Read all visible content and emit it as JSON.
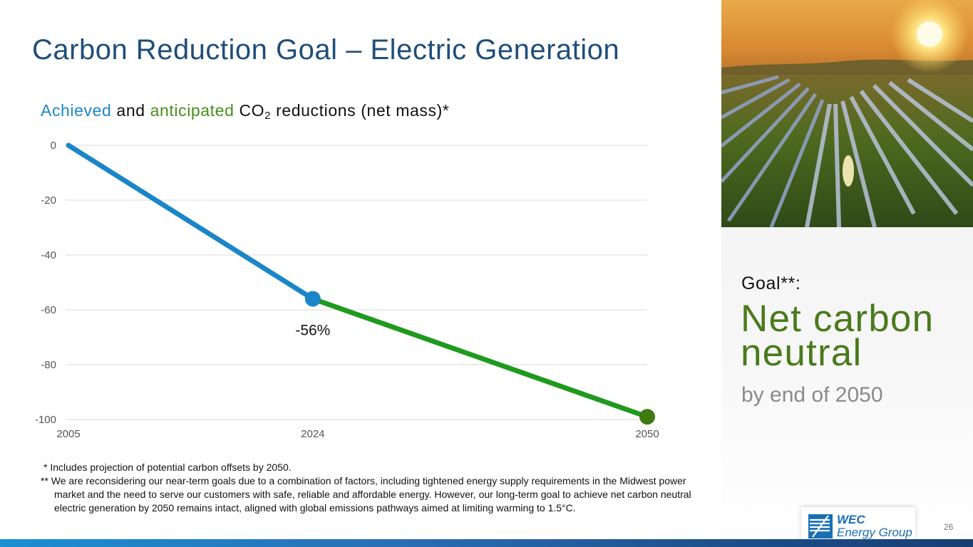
{
  "page": {
    "title": "Carbon Reduction Goal – Electric Generation",
    "page_number": "26"
  },
  "subtitle": {
    "achieved": "Achieved",
    "and": "and",
    "anticipated": "anticipated",
    "co": "CO",
    "co_sub": "2",
    "rest": "reductions (net mass)*"
  },
  "chart_data": {
    "type": "line",
    "title": "Achieved and anticipated CO2 reductions (net mass)*",
    "categories": [
      "2005",
      "2024",
      "2050"
    ],
    "y_ticks": [
      "0",
      "-20",
      "-40",
      "-60",
      "-80",
      "-100"
    ],
    "ylim": [
      -100,
      0
    ],
    "grid": true,
    "series": [
      {
        "name": "Achieved",
        "color": "#1a86c8",
        "x": [
          "2005",
          "2024"
        ],
        "values": [
          0,
          -56
        ]
      },
      {
        "name": "Anticipated",
        "color": "#1f9a1f",
        "x": [
          "2024",
          "2050"
        ],
        "values": [
          -56,
          -99
        ]
      }
    ],
    "markers": [
      {
        "x": "2024",
        "value": -56,
        "color": "#1a86c8"
      },
      {
        "x": "2050",
        "value": -99,
        "color": "#3f7a12"
      }
    ],
    "annotations": [
      {
        "x": "2024",
        "value": -56,
        "text": "-56%"
      }
    ]
  },
  "footnotes": {
    "note1": "* Includes projection of potential carbon offsets by 2050.",
    "note2": "** We are reconsidering our near-term goals due to a combination of factors, including tightened energy supply requirements in the Midwest power market and the need to serve our customers with safe, reliable and affordable energy. However, our long-term goal to achieve net carbon neutral electric generation by 2050 remains intact, aligned with global emissions pathways aimed at limiting warming to 1.5°C."
  },
  "goal": {
    "label": "Goal**:",
    "main": "Net carbon neutral",
    "sub": "by end of 2050"
  },
  "logo": {
    "line1": "WEC",
    "line2": "Energy Group"
  },
  "colors": {
    "title": "#1f4e79",
    "achieved": "#1a86c8",
    "anticipated": "#1f9a1f",
    "goal_green": "#4a7a1c"
  }
}
